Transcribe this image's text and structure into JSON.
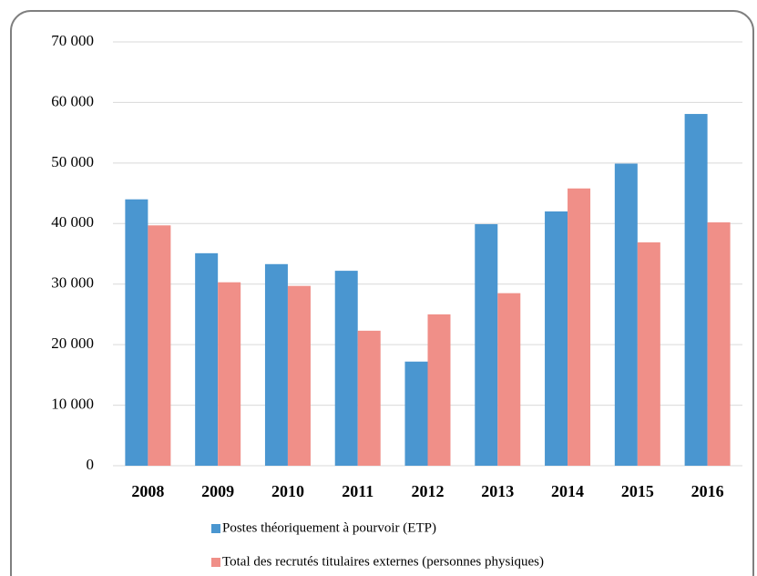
{
  "chart_data": {
    "type": "bar",
    "categories": [
      "2008",
      "2009",
      "2010",
      "2011",
      "2012",
      "2013",
      "2014",
      "2015",
      "2016"
    ],
    "series": [
      {
        "name": "Postes théoriquement à pourvoir (ETP)",
        "color": "#4a96d0",
        "values": [
          44000,
          35100,
          33300,
          32200,
          17200,
          39900,
          42000,
          49900,
          58100
        ]
      },
      {
        "name": "Total des recrutés titulaires externes (personnes physiques)",
        "color": "#f08f88",
        "values": [
          39700,
          30300,
          29700,
          22300,
          25000,
          28500,
          45800,
          36900,
          40200
        ]
      }
    ],
    "ylim": [
      0,
      70000
    ],
    "yticks": [
      0,
      {
        "value": 10000,
        "label": "10 000"
      },
      {
        "value": 20000,
        "label": "20 000"
      },
      {
        "value": 30000,
        "label": "30 000"
      },
      {
        "value": 40000,
        "label": "40 000"
      },
      {
        "value": 50000,
        "label": "50 000"
      },
      {
        "value": 60000,
        "label": "60 000"
      },
      {
        "value": 70000,
        "label": "70 000"
      }
    ],
    "grid": true,
    "legend": "bottom"
  }
}
